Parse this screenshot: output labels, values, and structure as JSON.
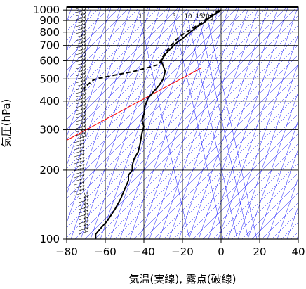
{
  "chart_data": {
    "type": "line",
    "xlabel": "気温(実線), 露点(破線)",
    "ylabel": "気圧(hPa)",
    "xlim": [
      -80,
      40
    ],
    "ylim": [
      1030,
      100
    ],
    "y_scale": "log",
    "x_ticks": [
      -80,
      -60,
      -40,
      -20,
      0,
      20,
      40
    ],
    "x_tick_labels": [
      "−80",
      "−60",
      "−40",
      "−20",
      "0",
      "20",
      "40"
    ],
    "y_ticks": [
      100,
      200,
      300,
      400,
      500,
      600,
      700,
      800,
      900,
      1000
    ],
    "y_tick_labels": [
      "100",
      "200",
      "300",
      "400",
      "500",
      "600",
      "700",
      "800",
      "900",
      "1000"
    ],
    "mixing_ratio_labels": [
      "1",
      "5",
      "10",
      "15",
      "20g"
    ],
    "mixing_ratio_values": [
      1,
      5,
      10,
      15,
      20
    ],
    "series": [
      {
        "style": "solid",
        "color": "#000000",
        "points": [
          [
            0,
            1000
          ],
          [
            -3,
            960
          ],
          [
            -6,
            925
          ],
          [
            -9,
            880
          ],
          [
            -12,
            850
          ],
          [
            -16,
            800
          ],
          [
            -20,
            750
          ],
          [
            -23,
            720
          ],
          [
            -26,
            680
          ],
          [
            -29,
            640
          ],
          [
            -31,
            600
          ],
          [
            -30,
            570
          ],
          [
            -29,
            540
          ],
          [
            -30,
            500
          ],
          [
            -32,
            470
          ],
          [
            -35,
            440
          ],
          [
            -38,
            410
          ],
          [
            -39.5,
            380
          ],
          [
            -40,
            350
          ],
          [
            -41,
            330
          ],
          [
            -40,
            310
          ],
          [
            -41,
            290
          ],
          [
            -42,
            260
          ],
          [
            -43,
            240
          ],
          [
            -45,
            225
          ],
          [
            -46,
            210
          ],
          [
            -46,
            200
          ],
          [
            -48,
            190
          ],
          [
            -48,
            180
          ],
          [
            -50,
            165
          ],
          [
            -52,
            150
          ],
          [
            -55,
            135
          ],
          [
            -59,
            120
          ],
          [
            -63,
            110
          ],
          [
            -65,
            105
          ],
          [
            -65,
            100
          ]
        ]
      },
      {
        "style": "dashed",
        "color": "#000000",
        "points": [
          [
            -1,
            1000
          ],
          [
            -4,
            960
          ],
          [
            -7,
            925
          ],
          [
            -10,
            880
          ],
          [
            -13,
            850
          ],
          [
            -18,
            800
          ],
          [
            -22,
            760
          ],
          [
            -26,
            700
          ],
          [
            -29,
            650
          ],
          [
            -31,
            610
          ],
          [
            -32,
            580
          ],
          [
            -38,
            560
          ],
          [
            -45,
            540
          ],
          [
            -55,
            520
          ],
          [
            -65,
            500
          ],
          [
            -67,
            490
          ],
          [
            -68,
            480
          ],
          [
            -70,
            465
          ],
          [
            -71,
            455
          ],
          [
            -71,
            445
          ],
          [
            -70,
            430
          ]
        ]
      }
    ],
    "reference_lines": [
      {
        "color": "#ff0000",
        "points": [
          [
            -80,
            270
          ],
          [
            -10,
            560
          ]
        ]
      }
    ]
  },
  "colors": {
    "background": "#ffffff",
    "grid": "#000000",
    "isotherm": "#0000ff",
    "profile": "#000000",
    "reference": "#ff0000",
    "wind_barbs": "#000000"
  }
}
